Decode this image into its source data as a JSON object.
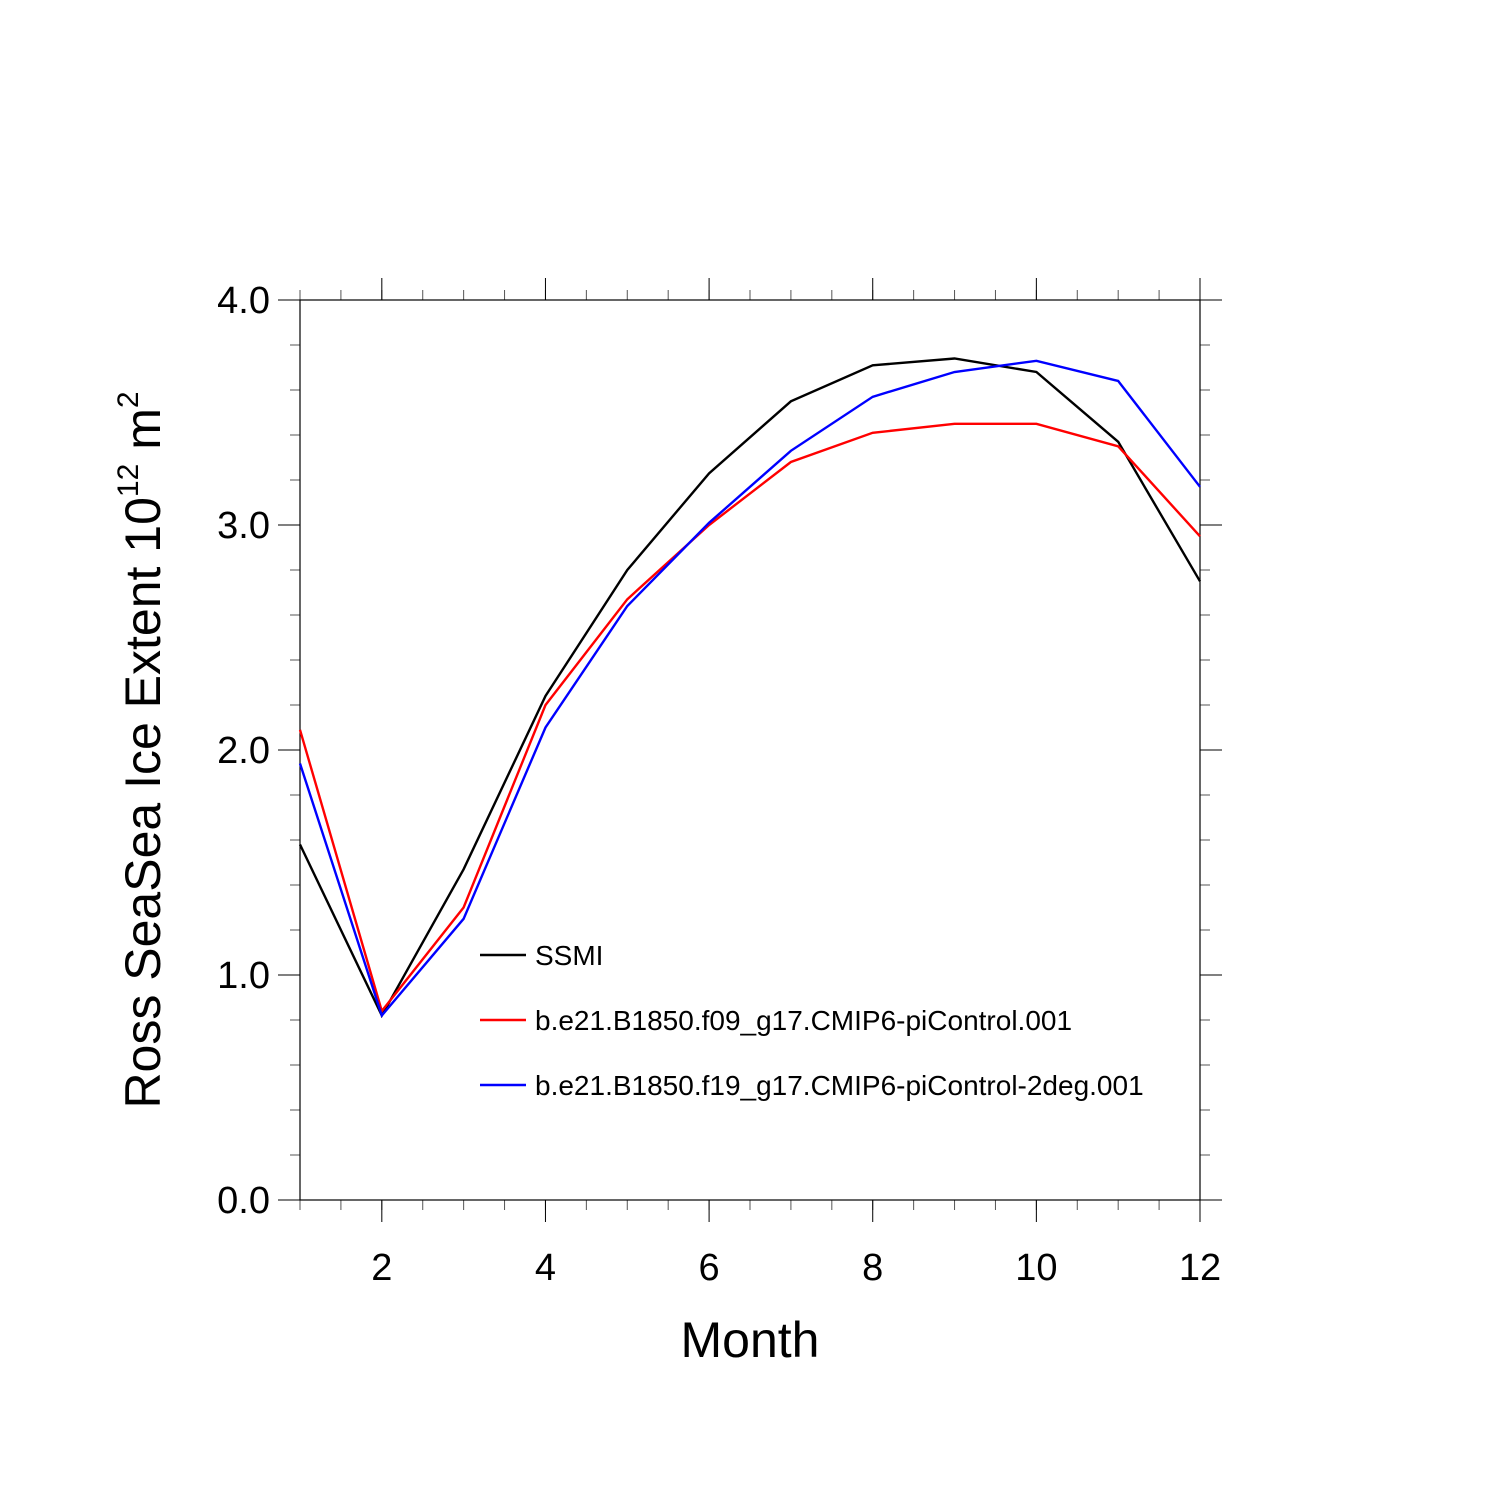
{
  "chart_data": {
    "type": "line",
    "title": "",
    "xlabel": "Month",
    "ylabel_main": "Ross SeaSea Ice Extent 10",
    "ylabel_exponent": "12",
    "ylabel_unit": " m",
    "ylabel_unit_exponent": "2",
    "xlim": [
      1,
      12
    ],
    "ylim": [
      0,
      4
    ],
    "x_ticks": [
      2,
      4,
      6,
      8,
      10,
      12
    ],
    "x_tick_labels": [
      "2",
      "4",
      "6",
      "8",
      "10",
      "12"
    ],
    "y_ticks": [
      0,
      1,
      2,
      3,
      4
    ],
    "y_tick_labels": [
      "0.0",
      "1.0",
      "2.0",
      "3.0",
      "4.0"
    ],
    "x": [
      1,
      2,
      3,
      4,
      5,
      6,
      7,
      8,
      9,
      10,
      11,
      12
    ],
    "series": [
      {
        "name": "SSMI",
        "color": "#000000",
        "values": [
          1.58,
          0.82,
          1.47,
          2.24,
          2.8,
          3.23,
          3.55,
          3.71,
          3.74,
          3.68,
          3.37,
          2.75
        ]
      },
      {
        "name": "b.e21.B1850.f09_g17.CMIP6-piControl.001",
        "color": "#ff0000",
        "values": [
          2.09,
          0.84,
          1.3,
          2.2,
          2.67,
          3.0,
          3.28,
          3.41,
          3.45,
          3.45,
          3.35,
          2.95
        ]
      },
      {
        "name": "b.e21.B1850.f19_g17.CMIP6-piControl-2deg.001",
        "color": "#0000ff",
        "values": [
          1.94,
          0.82,
          1.25,
          2.1,
          2.64,
          3.01,
          3.33,
          3.57,
          3.68,
          3.73,
          3.64,
          3.17
        ]
      }
    ],
    "legend_position": "inside-lower-center"
  }
}
